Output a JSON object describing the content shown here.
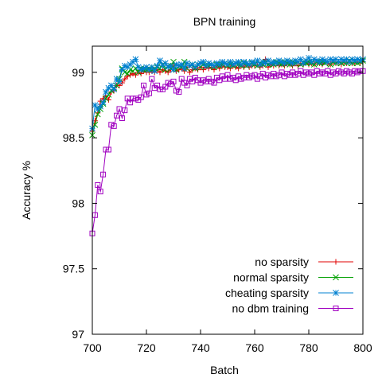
{
  "chart_data": {
    "type": "line",
    "title": "BPN training",
    "xlabel": "Batch",
    "ylabel": "Accuracy %",
    "xlim": [
      700,
      800
    ],
    "ylim": [
      97,
      99.2
    ],
    "xticks": [
      700,
      720,
      740,
      760,
      780,
      800
    ],
    "yticks": [
      97,
      97.5,
      98,
      98.5,
      99
    ],
    "xtick_labels": [
      "700",
      "720",
      "740",
      "760",
      "780",
      "800"
    ],
    "ytick_labels": [
      "97",
      "97.5",
      "98",
      "98.5",
      "99"
    ],
    "grid": false,
    "legend_position": "bottom-right",
    "x": [
      700,
      701,
      702,
      703,
      704,
      705,
      706,
      707,
      708,
      709,
      710,
      711,
      712,
      713,
      714,
      715,
      716,
      717,
      718,
      719,
      720,
      721,
      722,
      723,
      724,
      725,
      726,
      727,
      728,
      729,
      730,
      731,
      732,
      733,
      734,
      735,
      736,
      737,
      738,
      739,
      740,
      741,
      742,
      743,
      744,
      745,
      746,
      747,
      748,
      749,
      750,
      751,
      752,
      753,
      754,
      755,
      756,
      757,
      758,
      759,
      760,
      761,
      762,
      763,
      764,
      765,
      766,
      767,
      768,
      769,
      770,
      771,
      772,
      773,
      774,
      775,
      776,
      777,
      778,
      779,
      780,
      781,
      782,
      783,
      784,
      785,
      786,
      787,
      788,
      789,
      790,
      791,
      792,
      793,
      794,
      795,
      796,
      797,
      798,
      799,
      800
    ],
    "series": [
      {
        "name": "no sparsity",
        "color": "#e00000",
        "marker": "plus",
        "values": [
          98.55,
          98.63,
          98.69,
          98.78,
          98.8,
          98.82,
          98.79,
          98.85,
          98.86,
          98.9,
          98.9,
          98.92,
          98.95,
          98.97,
          98.98,
          98.99,
          98.98,
          99.0,
          98.99,
          99.01,
          99.0,
          99.0,
          99.01,
          99.0,
          99.02,
          99.0,
          99.02,
          99.01,
          99.0,
          99.02,
          99.05,
          99.01,
          99.02,
          99.03,
          99.01,
          99.04,
          99.0,
          99.02,
          99.03,
          99.02,
          99.04,
          99.02,
          99.04,
          99.03,
          99.04,
          99.02,
          99.05,
          99.03,
          99.05,
          99.04,
          99.04,
          99.03,
          99.05,
          99.04,
          99.03,
          99.05,
          99.04,
          99.06,
          99.04,
          99.05,
          99.05,
          99.06,
          99.04,
          99.05,
          99.1,
          99.04,
          99.06,
          99.05,
          99.07,
          99.05,
          99.06,
          99.05,
          99.07,
          99.06,
          99.05,
          99.07,
          99.05,
          99.07,
          99.06,
          99.08,
          99.06,
          99.07,
          99.06,
          99.08,
          99.07,
          99.06,
          99.08,
          99.07,
          99.06,
          99.08,
          99.07,
          99.08,
          99.06,
          99.08,
          99.07,
          99.08,
          99.07,
          99.07,
          99.08,
          99.07,
          99.08
        ]
      },
      {
        "name": "normal sparsity",
        "color": "#00a000",
        "marker": "cross",
        "values": [
          98.52,
          98.6,
          98.68,
          98.72,
          98.76,
          98.8,
          98.83,
          98.86,
          98.88,
          98.9,
          98.95,
          99.03,
          99.0,
          98.99,
          99.02,
          99.01,
          99.03,
          99.0,
          99.03,
          99.02,
          99.02,
          99.03,
          99.02,
          99.03,
          99.04,
          99.03,
          99.06,
          99.02,
          99.05,
          99.03,
          99.08,
          99.02,
          99.05,
          99.04,
          99.08,
          99.03,
          99.05,
          99.06,
          99.03,
          99.06,
          99.04,
          99.06,
          99.05,
          99.05,
          99.06,
          99.04,
          99.06,
          99.05,
          99.06,
          99.07,
          99.05,
          99.06,
          99.05,
          99.07,
          99.06,
          99.05,
          99.07,
          99.05,
          99.06,
          99.07,
          99.06,
          99.05,
          99.07,
          99.06,
          99.08,
          99.06,
          99.07,
          99.06,
          99.08,
          99.07,
          99.06,
          99.08,
          99.07,
          99.06,
          99.08,
          99.07,
          99.08,
          99.06,
          99.08,
          99.07,
          99.08,
          99.07,
          99.06,
          99.08,
          99.07,
          99.08,
          99.07,
          99.08,
          99.06,
          99.08,
          99.07,
          99.08,
          99.07,
          99.08,
          99.07,
          99.09,
          99.07,
          99.08,
          99.07,
          99.08,
          99.09
        ]
      },
      {
        "name": "cheating sparsity",
        "color": "#0080d0",
        "marker": "star",
        "values": [
          98.57,
          98.75,
          98.72,
          98.74,
          98.77,
          98.85,
          98.88,
          98.9,
          98.87,
          98.95,
          98.93,
          99.02,
          99.05,
          99.04,
          99.06,
          99.08,
          99.1,
          99.04,
          99.02,
          99.03,
          99.04,
          99.02,
          99.04,
          99.01,
          99.05,
          99.09,
          99.05,
          99.07,
          99.04,
          99.05,
          99.02,
          99.06,
          99.05,
          99.06,
          99.03,
          99.07,
          99.05,
          99.06,
          99.04,
          99.06,
          99.07,
          99.08,
          99.05,
          99.07,
          99.06,
          99.05,
          99.07,
          99.06,
          99.08,
          99.07,
          99.06,
          99.08,
          99.06,
          99.07,
          99.08,
          99.06,
          99.08,
          99.07,
          99.06,
          99.08,
          99.07,
          99.09,
          99.06,
          99.08,
          99.07,
          99.09,
          99.07,
          99.08,
          99.07,
          99.09,
          99.08,
          99.07,
          99.09,
          99.08,
          99.07,
          99.09,
          99.08,
          99.1,
          99.07,
          99.09,
          99.11,
          99.08,
          99.1,
          99.09,
          99.08,
          99.1,
          99.09,
          99.08,
          99.1,
          99.09,
          99.1,
          99.08,
          99.1,
          99.09,
          99.1,
          99.08,
          99.1,
          99.09,
          99.1,
          99.09,
          99.1
        ]
      },
      {
        "name": "no dbm training",
        "color": "#a000c0",
        "marker": "square",
        "values": [
          97.77,
          97.91,
          98.14,
          98.09,
          98.22,
          98.41,
          98.41,
          98.6,
          98.59,
          98.67,
          98.72,
          98.65,
          98.71,
          98.8,
          98.77,
          98.8,
          98.8,
          98.79,
          98.81,
          98.9,
          98.83,
          98.84,
          98.95,
          98.88,
          98.9,
          98.87,
          98.87,
          98.89,
          98.92,
          98.91,
          98.93,
          98.86,
          98.85,
          98.95,
          98.92,
          98.9,
          98.95,
          98.93,
          98.96,
          98.94,
          98.92,
          98.94,
          98.93,
          98.95,
          98.93,
          98.92,
          98.96,
          98.94,
          98.97,
          98.95,
          98.98,
          98.95,
          98.96,
          98.94,
          98.97,
          98.95,
          98.96,
          98.98,
          98.96,
          98.97,
          98.98,
          98.95,
          98.97,
          98.99,
          98.96,
          98.98,
          98.97,
          98.99,
          98.97,
          98.98,
          99.0,
          98.97,
          98.99,
          98.98,
          99.0,
          98.98,
          98.99,
          99.01,
          98.98,
          99.0,
          98.99,
          99.0,
          98.98,
          99.01,
          98.99,
          99.0,
          98.99,
          99.01,
          98.98,
          99.0,
          98.99,
          99.01,
          99.0,
          98.99,
          99.01,
          99.0,
          98.99,
          99.01,
          99.0,
          99.01,
          99.01
        ]
      }
    ]
  }
}
